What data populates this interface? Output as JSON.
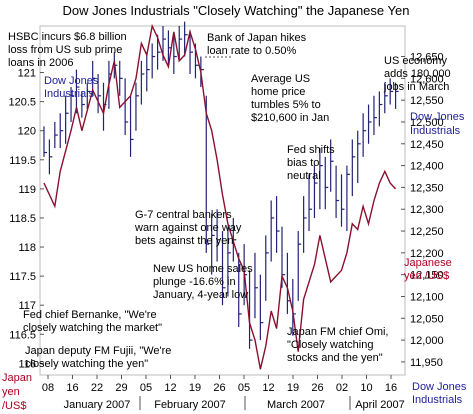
{
  "chart_data": {
    "type": "line",
    "title": "Dow Jones Industrials \"Closely Watching\" the Japanese Yen",
    "x_ticks": [
      "08",
      "16",
      "22",
      "29",
      "05",
      "12",
      "19",
      "26",
      "05",
      "12",
      "19",
      "26",
      "02",
      "10",
      "16"
    ],
    "x_months": [
      "January 2007",
      "February 2007",
      "March 2007",
      "April 2007"
    ],
    "left_axis": {
      "label_line1": "Japan",
      "label_line2": "yen",
      "label_line3": "/US$",
      "ticks": [
        121,
        120.5,
        120,
        119.5,
        119,
        118.5,
        118,
        117.5,
        117,
        116.5,
        116
      ],
      "ylim": [
        115.8,
        121.8
      ]
    },
    "right_axis": {
      "label_line1": "Dow Jones",
      "label_line2": "Industrials",
      "ticks": [
        12650,
        12600,
        12550,
        12500,
        12450,
        12400,
        12350,
        12300,
        12250,
        12200,
        12150,
        12100,
        12050,
        12000,
        11950
      ],
      "ylim": [
        11920,
        12720
      ]
    },
    "series": [
      {
        "name": "Japanese yen /US$",
        "color": "#8b1030",
        "axis": "left",
        "values": [
          [
            0,
            119.1
          ],
          [
            2,
            118.7
          ],
          [
            3,
            119.3
          ],
          [
            5,
            120.0
          ],
          [
            6,
            120.4
          ],
          [
            7,
            120.0
          ],
          [
            9,
            120.7
          ],
          [
            11,
            120.3
          ],
          [
            12,
            120.8
          ],
          [
            13,
            121.2
          ],
          [
            14,
            120.4
          ],
          [
            16,
            120.6
          ],
          [
            17,
            120.9
          ],
          [
            18,
            121.5
          ],
          [
            19,
            121.3
          ],
          [
            20,
            121.8
          ],
          [
            21,
            121.6
          ],
          [
            22,
            121.3
          ],
          [
            23,
            121.1
          ],
          [
            24,
            121.7
          ],
          [
            25,
            121.2
          ],
          [
            26,
            121.3
          ],
          [
            27,
            121.7
          ],
          [
            28,
            121.4
          ],
          [
            29,
            121.0
          ],
          [
            30,
            120.3
          ],
          [
            31,
            120.0
          ],
          [
            32,
            119.5
          ],
          [
            33,
            118.9
          ],
          [
            34,
            118.4
          ],
          [
            35,
            118.1
          ],
          [
            36,
            117.8
          ],
          [
            37,
            117.6
          ],
          [
            38,
            116.7
          ],
          [
            39,
            116.4
          ],
          [
            40,
            115.9
          ],
          [
            41,
            116.3
          ],
          [
            42,
            116.9
          ],
          [
            43,
            116.6
          ],
          [
            44,
            117.5
          ],
          [
            45,
            117.3
          ],
          [
            46,
            116.9
          ],
          [
            47,
            116.2
          ],
          [
            48,
            117.1
          ],
          [
            49,
            117.4
          ],
          [
            50,
            117.7
          ],
          [
            51,
            118.2
          ],
          [
            52,
            117.8
          ],
          [
            53,
            117.4
          ],
          [
            54,
            117.5
          ],
          [
            55,
            117.6
          ],
          [
            56,
            117.9
          ],
          [
            57,
            118.4
          ],
          [
            58,
            118.3
          ],
          [
            59,
            118.7
          ],
          [
            60,
            118.4
          ],
          [
            61,
            118.8
          ],
          [
            62,
            119.1
          ],
          [
            63,
            119.3
          ],
          [
            64,
            119.1
          ],
          [
            65,
            119.0
          ]
        ]
      },
      {
        "name": "Dow Jones Industrials",
        "color": "#222277",
        "axis": "right",
        "ohlc": [
          [
            0,
            12420,
            12490,
            12430
          ],
          [
            1,
            12380,
            12460,
            12420
          ],
          [
            2,
            12440,
            12500,
            12470
          ],
          [
            3,
            12440,
            12520,
            12480
          ],
          [
            4,
            12450,
            12560,
            12520
          ],
          [
            5,
            12500,
            12580,
            12560
          ],
          [
            6,
            12520,
            12620,
            12580
          ],
          [
            7,
            12510,
            12570,
            12540
          ],
          [
            8,
            12530,
            12590,
            12570
          ],
          [
            9,
            12560,
            12640,
            12600
          ],
          [
            10,
            12520,
            12610,
            12560
          ],
          [
            11,
            12480,
            12590,
            12540
          ],
          [
            12,
            12530,
            12640,
            12610
          ],
          [
            13,
            12600,
            12660,
            12630
          ],
          [
            14,
            12560,
            12640,
            12600
          ],
          [
            15,
            12470,
            12600,
            12500
          ],
          [
            16,
            12420,
            12560,
            12460
          ],
          [
            17,
            12480,
            12590,
            12560
          ],
          [
            18,
            12540,
            12640,
            12610
          ],
          [
            19,
            12570,
            12660,
            12620
          ],
          [
            20,
            12600,
            12680,
            12650
          ],
          [
            21,
            12620,
            12700,
            12660
          ],
          [
            22,
            12640,
            12720,
            12690
          ],
          [
            23,
            12630,
            12710,
            12670
          ],
          [
            24,
            12610,
            12700,
            12650
          ],
          [
            25,
            12640,
            12720,
            12690
          ],
          [
            26,
            12650,
            12730,
            12700
          ],
          [
            27,
            12610,
            12710,
            12660
          ],
          [
            28,
            12600,
            12680,
            12630
          ],
          [
            29,
            12580,
            12650,
            12620
          ],
          [
            30,
            12200,
            12560,
            12220
          ],
          [
            31,
            12150,
            12290,
            12240
          ],
          [
            32,
            12180,
            12300,
            12230
          ],
          [
            33,
            12080,
            12250,
            12120
          ],
          [
            34,
            12100,
            12260,
            12200
          ],
          [
            35,
            12180,
            12280,
            12230
          ],
          [
            36,
            12030,
            12200,
            12060
          ],
          [
            37,
            12080,
            12220,
            12150
          ],
          [
            38,
            11980,
            12160,
            12000
          ],
          [
            39,
            12050,
            12200,
            12120
          ],
          [
            40,
            12000,
            12150,
            12040
          ],
          [
            41,
            12090,
            12240,
            12200
          ],
          [
            42,
            12180,
            12320,
            12280
          ],
          [
            43,
            12200,
            12330,
            12250
          ],
          [
            44,
            12120,
            12260,
            12150
          ],
          [
            45,
            12060,
            12200,
            12090
          ],
          [
            46,
            12010,
            12140,
            12060
          ],
          [
            47,
            12090,
            12250,
            12220
          ],
          [
            48,
            12200,
            12330,
            12280
          ],
          [
            49,
            12250,
            12380,
            12300
          ],
          [
            50,
            12280,
            12400,
            12360
          ],
          [
            51,
            12300,
            12440,
            12400
          ],
          [
            52,
            12300,
            12420,
            12350
          ],
          [
            53,
            12340,
            12460,
            12410
          ],
          [
            54,
            12280,
            12400,
            12320
          ],
          [
            55,
            12260,
            12380,
            12300
          ],
          [
            56,
            12250,
            12400,
            12380
          ],
          [
            57,
            12330,
            12460,
            12420
          ],
          [
            58,
            12360,
            12480,
            12450
          ],
          [
            59,
            12420,
            12520,
            12480
          ],
          [
            60,
            12450,
            12540,
            12500
          ],
          [
            61,
            12470,
            12560,
            12510
          ],
          [
            62,
            12490,
            12570,
            12540
          ],
          [
            63,
            12520,
            12590,
            12560
          ],
          [
            64,
            12540,
            12600,
            12570
          ],
          [
            65,
            12530,
            12590,
            12570
          ]
        ]
      }
    ],
    "annotations": [
      {
        "id": "hsbc",
        "lines": [
          "HSBC incurs $6.8 billion",
          "loss from US sub prime",
          "loans in 2006"
        ],
        "tone": "plain"
      },
      {
        "id": "boj",
        "lines": [
          "Bank of Japan hikes",
          "loan rate to 0.50%"
        ],
        "tone": "plain"
      },
      {
        "id": "us-economy",
        "lines": [
          "US economy",
          "adds 180,000",
          "jobs in March"
        ],
        "tone": "plain"
      },
      {
        "id": "dji-label",
        "lines": [
          "Dow Jones",
          "Industrials"
        ],
        "tone": "blue"
      },
      {
        "id": "home-price",
        "lines": [
          "Average US",
          "home price",
          "tumbles 5% to",
          "$210,600 in Jan"
        ],
        "tone": "plain"
      },
      {
        "id": "fed-bias",
        "lines": [
          "Fed shifts",
          "bias to",
          "neutral"
        ],
        "tone": "plain"
      },
      {
        "id": "g7",
        "lines": [
          "G-7 central bankers",
          "warn against one way",
          "bets against the yen"
        ],
        "tone": "plain"
      },
      {
        "id": "home-sales",
        "lines": [
          "New US home sales",
          "plunge -16.6% in",
          "January, 4-year low"
        ],
        "tone": "plain"
      },
      {
        "id": "bernanke",
        "lines": [
          "Fed chief Bernanke, \"We're",
          "closely watching the market\""
        ],
        "tone": "plain"
      },
      {
        "id": "fujii",
        "lines": [
          "Japan deputy FM Fujii, \"We're",
          "closely watching the yen\""
        ],
        "tone": "plain"
      },
      {
        "id": "omi",
        "lines": [
          "Japan FM chief Omi,",
          "\"Closely watching",
          "stocks and the yen\""
        ],
        "tone": "plain"
      },
      {
        "id": "yen-label",
        "lines": [
          "Japanese",
          "yen /US$"
        ],
        "tone": "red"
      },
      {
        "id": "dji-bottom",
        "lines": [
          "Dow Jones",
          "Industrials"
        ],
        "tone": "blue"
      }
    ]
  }
}
